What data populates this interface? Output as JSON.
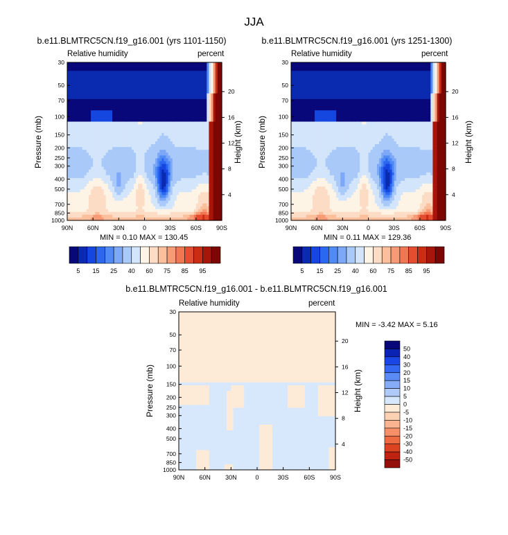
{
  "page": {
    "title": "JJA"
  },
  "colors": {
    "rh": [
      "#08087a",
      "#0a2ab0",
      "#1546e0",
      "#2b67f0",
      "#4f8af5",
      "#7ca8f7",
      "#a9c9f9",
      "#d3e5fb",
      "#fdf4e6",
      "#fddcc5",
      "#fbbf9c",
      "#f69b76",
      "#f17752",
      "#e54d30",
      "#cc2b14",
      "#a8150a",
      "#7c0603"
    ],
    "diff": [
      "#07077a",
      "#0a23b5",
      "#1a46e6",
      "#3468f2",
      "#5a8cf5",
      "#87acf7",
      "#b1cbf8",
      "#d8e8fc",
      "#fdebd8",
      "#fcd1b4",
      "#fab48f",
      "#f69068",
      "#ee6b42",
      "#dc4320",
      "#bd2310",
      "#94100a"
    ]
  },
  "chart_data": [
    {
      "type": "heatmap",
      "title": "b.e11.BLMTRC5CN.f19_g16.001 (yrs 1101-1150)",
      "left_label": "Relative humidity",
      "right_label": "percent",
      "ylabel": "Pressure (mb)",
      "y2label": "Height (km)",
      "x_ticks": [
        "90N",
        "60N",
        "30N",
        "0",
        "30S",
        "60S",
        "90S"
      ],
      "y_ticks": [
        "30",
        "50",
        "70",
        "100",
        "150",
        "200",
        "250",
        "300",
        "400",
        "500",
        "700",
        "850",
        "1000"
      ],
      "y2_ticks": [
        "20",
        "16",
        "12",
        "8",
        "4"
      ],
      "min_max": "MIN =   0.10   MAX = 130.45",
      "colorbar_levels": [
        "5",
        "15",
        "25",
        "40",
        "60",
        "75",
        "85",
        "95"
      ]
    },
    {
      "type": "heatmap",
      "title": "b.e11.BLMTRC5CN.f19_g16.001 (yrs 1251-1300)",
      "left_label": "Relative humidity",
      "right_label": "percent",
      "ylabel": "Pressure (mb)",
      "y2label": "Height (km)",
      "x_ticks": [
        "90N",
        "60N",
        "30N",
        "0",
        "30S",
        "60S",
        "90S"
      ],
      "y_ticks": [
        "30",
        "50",
        "70",
        "100",
        "150",
        "200",
        "250",
        "300",
        "400",
        "500",
        "700",
        "850",
        "1000"
      ],
      "y2_ticks": [
        "20",
        "16",
        "12",
        "8",
        "4"
      ],
      "min_max": "MIN =   0.11   MAX = 129.36",
      "colorbar_levels": [
        "5",
        "15",
        "25",
        "40",
        "60",
        "75",
        "85",
        "95"
      ]
    },
    {
      "type": "heatmap",
      "title": "b.e11.BLMTRC5CN.f19_g16.001 - b.e11.BLMTRC5CN.f19_g16.001",
      "left_label": "Relative humidity",
      "right_label": "percent",
      "ylabel": "Pressure (mb)",
      "y2label": "Height (km)",
      "x_ticks": [
        "90N",
        "60N",
        "30N",
        "0",
        "30S",
        "60S",
        "90S"
      ],
      "y_ticks": [
        "30",
        "50",
        "70",
        "100",
        "150",
        "200",
        "250",
        "300",
        "400",
        "500",
        "700",
        "850",
        "1000"
      ],
      "y2_ticks": [
        "20",
        "16",
        "12",
        "8",
        "4"
      ],
      "min_max": "MIN =  -3.42   MAX =   5.16",
      "colorbar_levels": [
        "50",
        "40",
        "30",
        "20",
        "15",
        "10",
        "5",
        "0",
        "-5",
        "-10",
        "-15",
        "-20",
        "-30",
        "-40",
        "-50"
      ]
    }
  ]
}
